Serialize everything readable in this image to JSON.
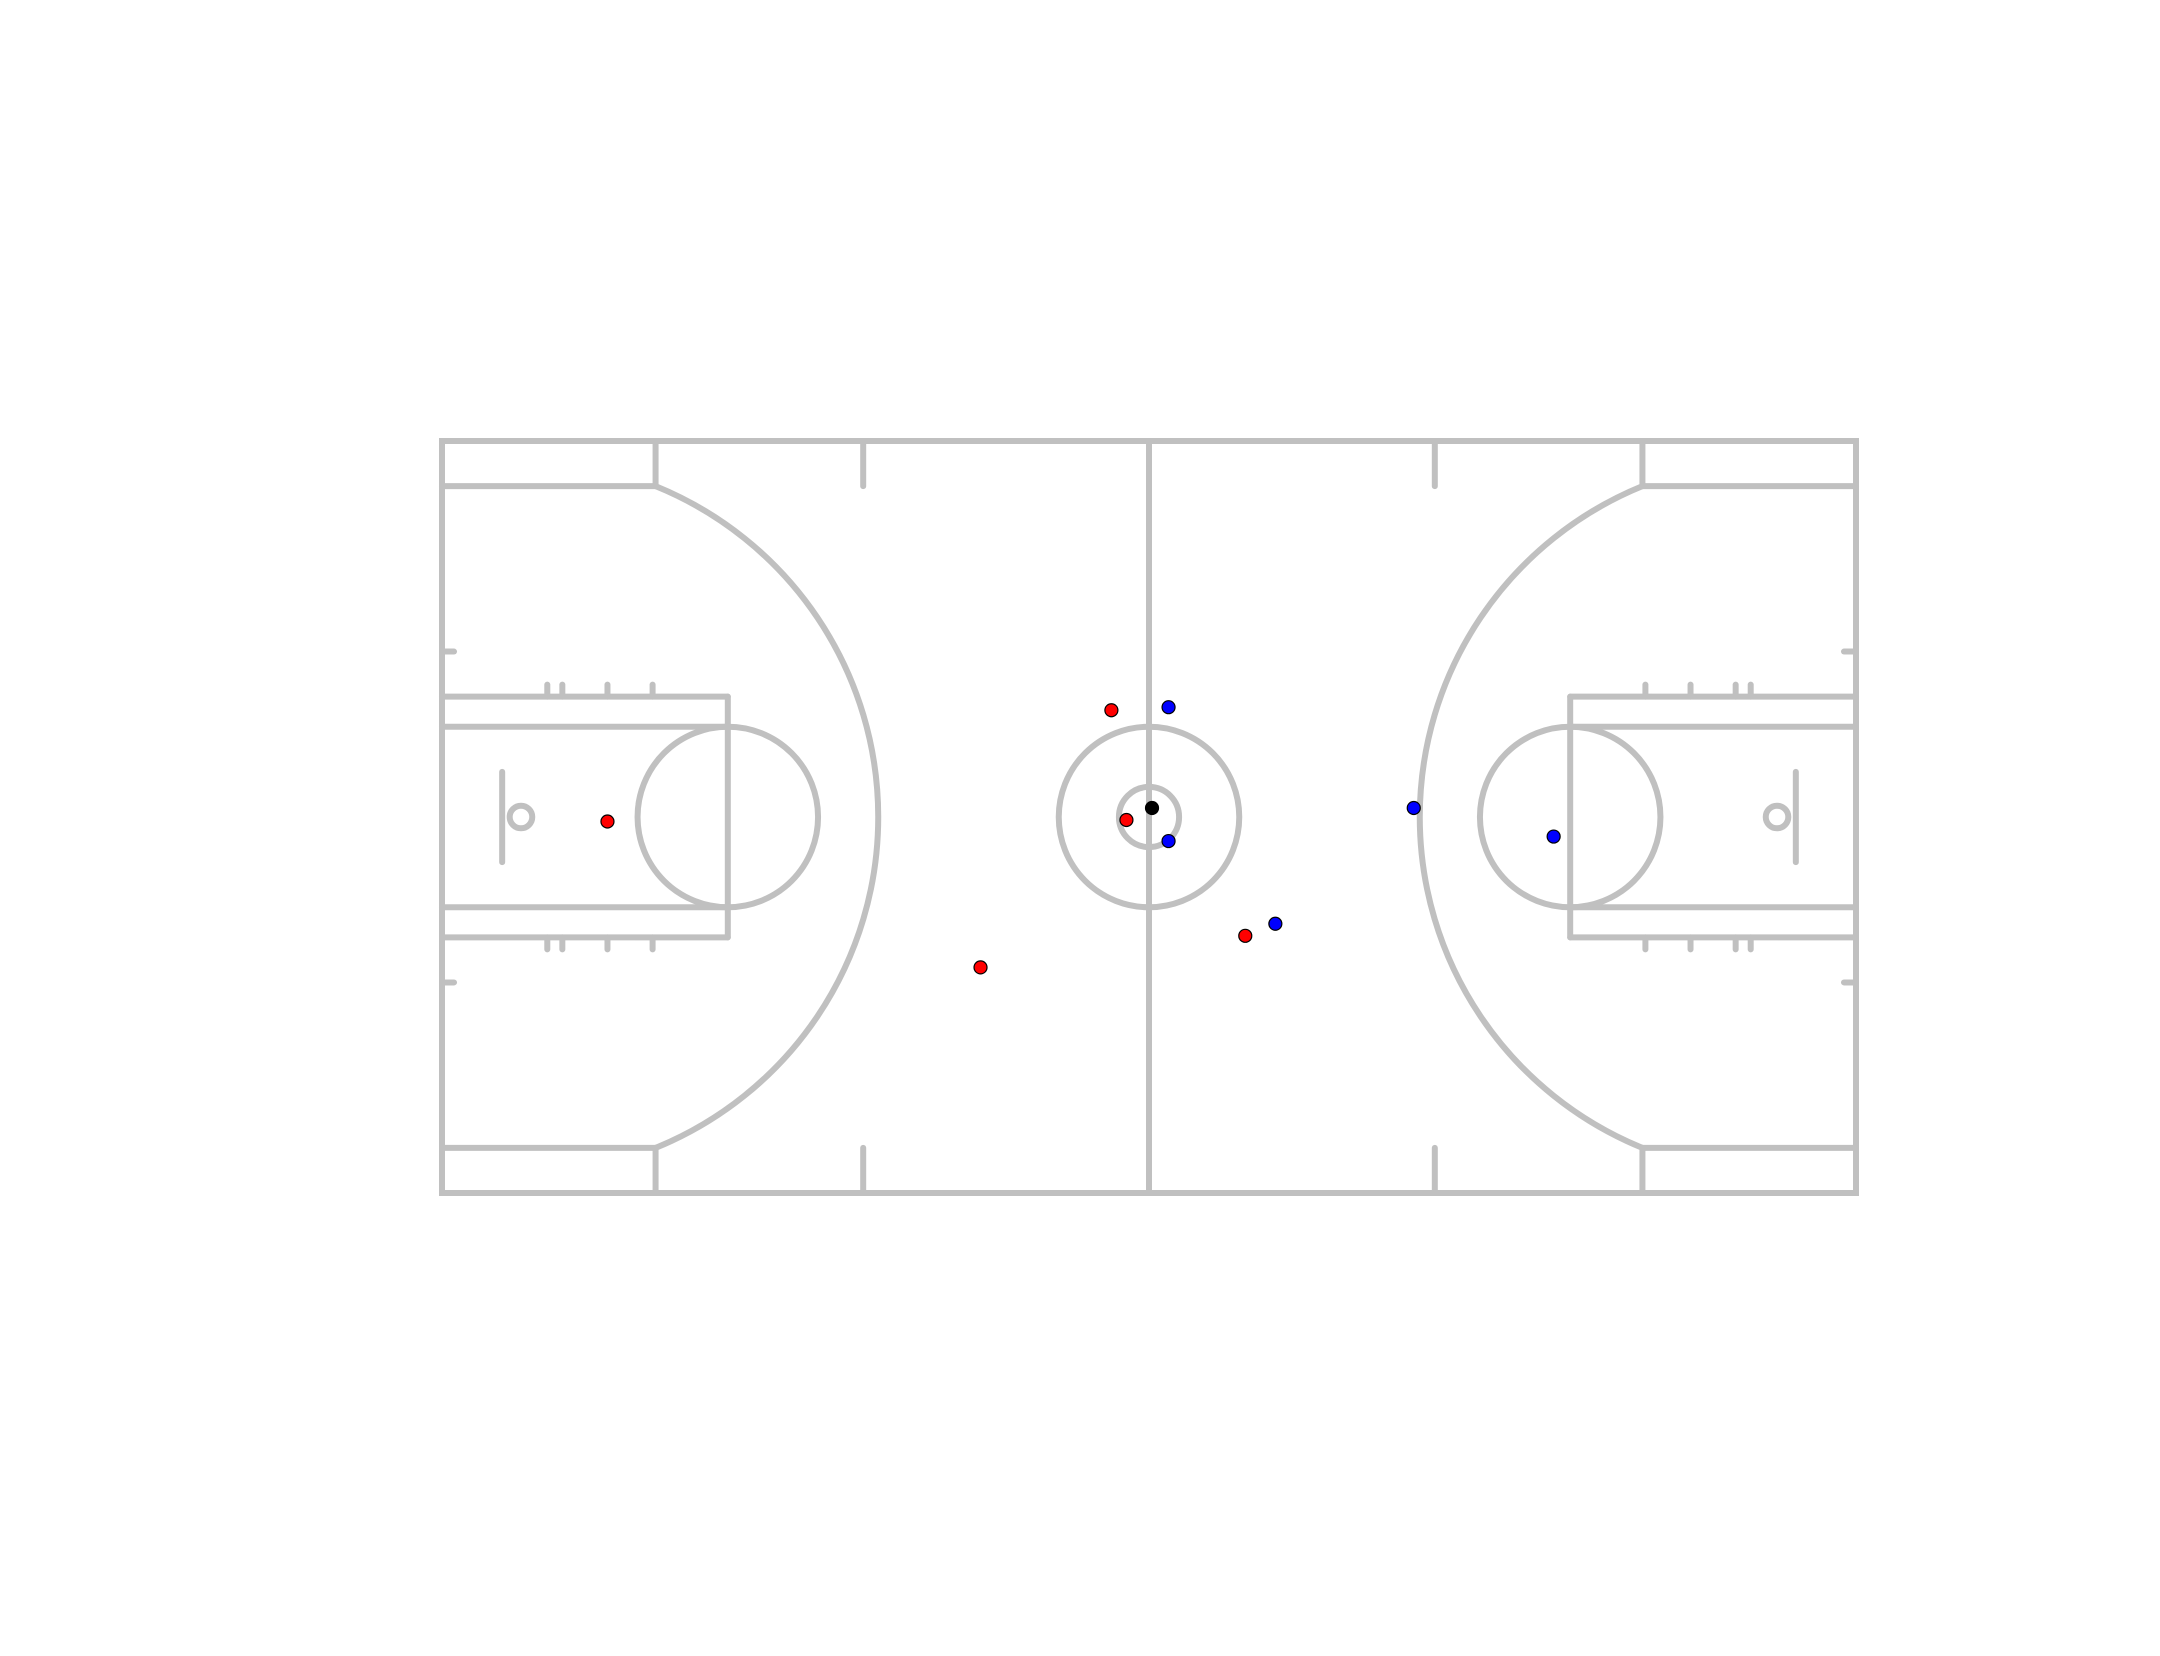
{
  "chart_data": {
    "type": "scatter",
    "title": "",
    "xlabel": "",
    "ylabel": "",
    "xlim": [
      0,
      94
    ],
    "ylim": [
      0,
      50
    ],
    "grid": false,
    "axes_visible": false,
    "background": "court",
    "colors": {
      "court_line": "#c0c0c0",
      "team_red": "#ff0000",
      "team_blue": "#0000ff",
      "ball": "#000000",
      "marker_edge": "#000000"
    },
    "series": [
      {
        "color": "#ff0000",
        "points": [
          {
            "x": 11.0,
            "y": 24.7
          },
          {
            "x": 44.5,
            "y": 32.1
          },
          {
            "x": 45.5,
            "y": 24.8
          },
          {
            "x": 35.8,
            "y": 15.0
          },
          {
            "x": 53.4,
            "y": 17.1
          }
        ]
      },
      {
        "color": "#0000ff",
        "points": [
          {
            "x": 48.3,
            "y": 32.3
          },
          {
            "x": 48.3,
            "y": 23.4
          },
          {
            "x": 64.6,
            "y": 25.6
          },
          {
            "x": 73.9,
            "y": 23.7
          },
          {
            "x": 55.4,
            "y": 17.9
          }
        ]
      },
      {
        "color": "#000000",
        "points": [
          {
            "x": 47.2,
            "y": 25.6
          }
        ]
      }
    ]
  }
}
